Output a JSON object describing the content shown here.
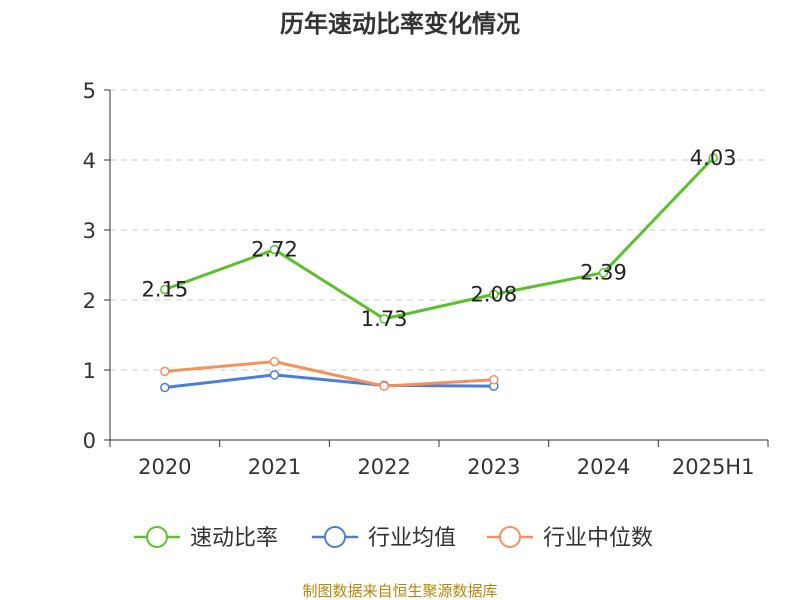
{
  "chart_data": {
    "type": "line",
    "title": "历年速动比率变化情况",
    "categories": [
      "2020",
      "2021",
      "2022",
      "2023",
      "2024",
      "2025H1"
    ],
    "ylim": [
      0,
      5
    ],
    "yticks": [
      "0",
      "1",
      "2",
      "3",
      "4",
      "5"
    ],
    "grid": true,
    "legend_position": "bottom",
    "series": [
      {
        "name": "速动比率",
        "color": "#5ac12d",
        "values": [
          2.15,
          2.72,
          1.73,
          2.08,
          2.39,
          4.03
        ],
        "labels": [
          "2.15",
          "2.72",
          "1.73",
          "2.08",
          "2.39",
          "4.03"
        ]
      },
      {
        "name": "行业均值",
        "color": "#4a7fd6",
        "values": [
          0.75,
          0.93,
          0.78,
          0.77,
          null,
          null
        ]
      },
      {
        "name": "行业中位数",
        "color": "#f5915c",
        "values": [
          0.98,
          1.12,
          0.77,
          0.86,
          null,
          null
        ]
      }
    ],
    "source": "制图数据来自恒生聚源数据库"
  }
}
